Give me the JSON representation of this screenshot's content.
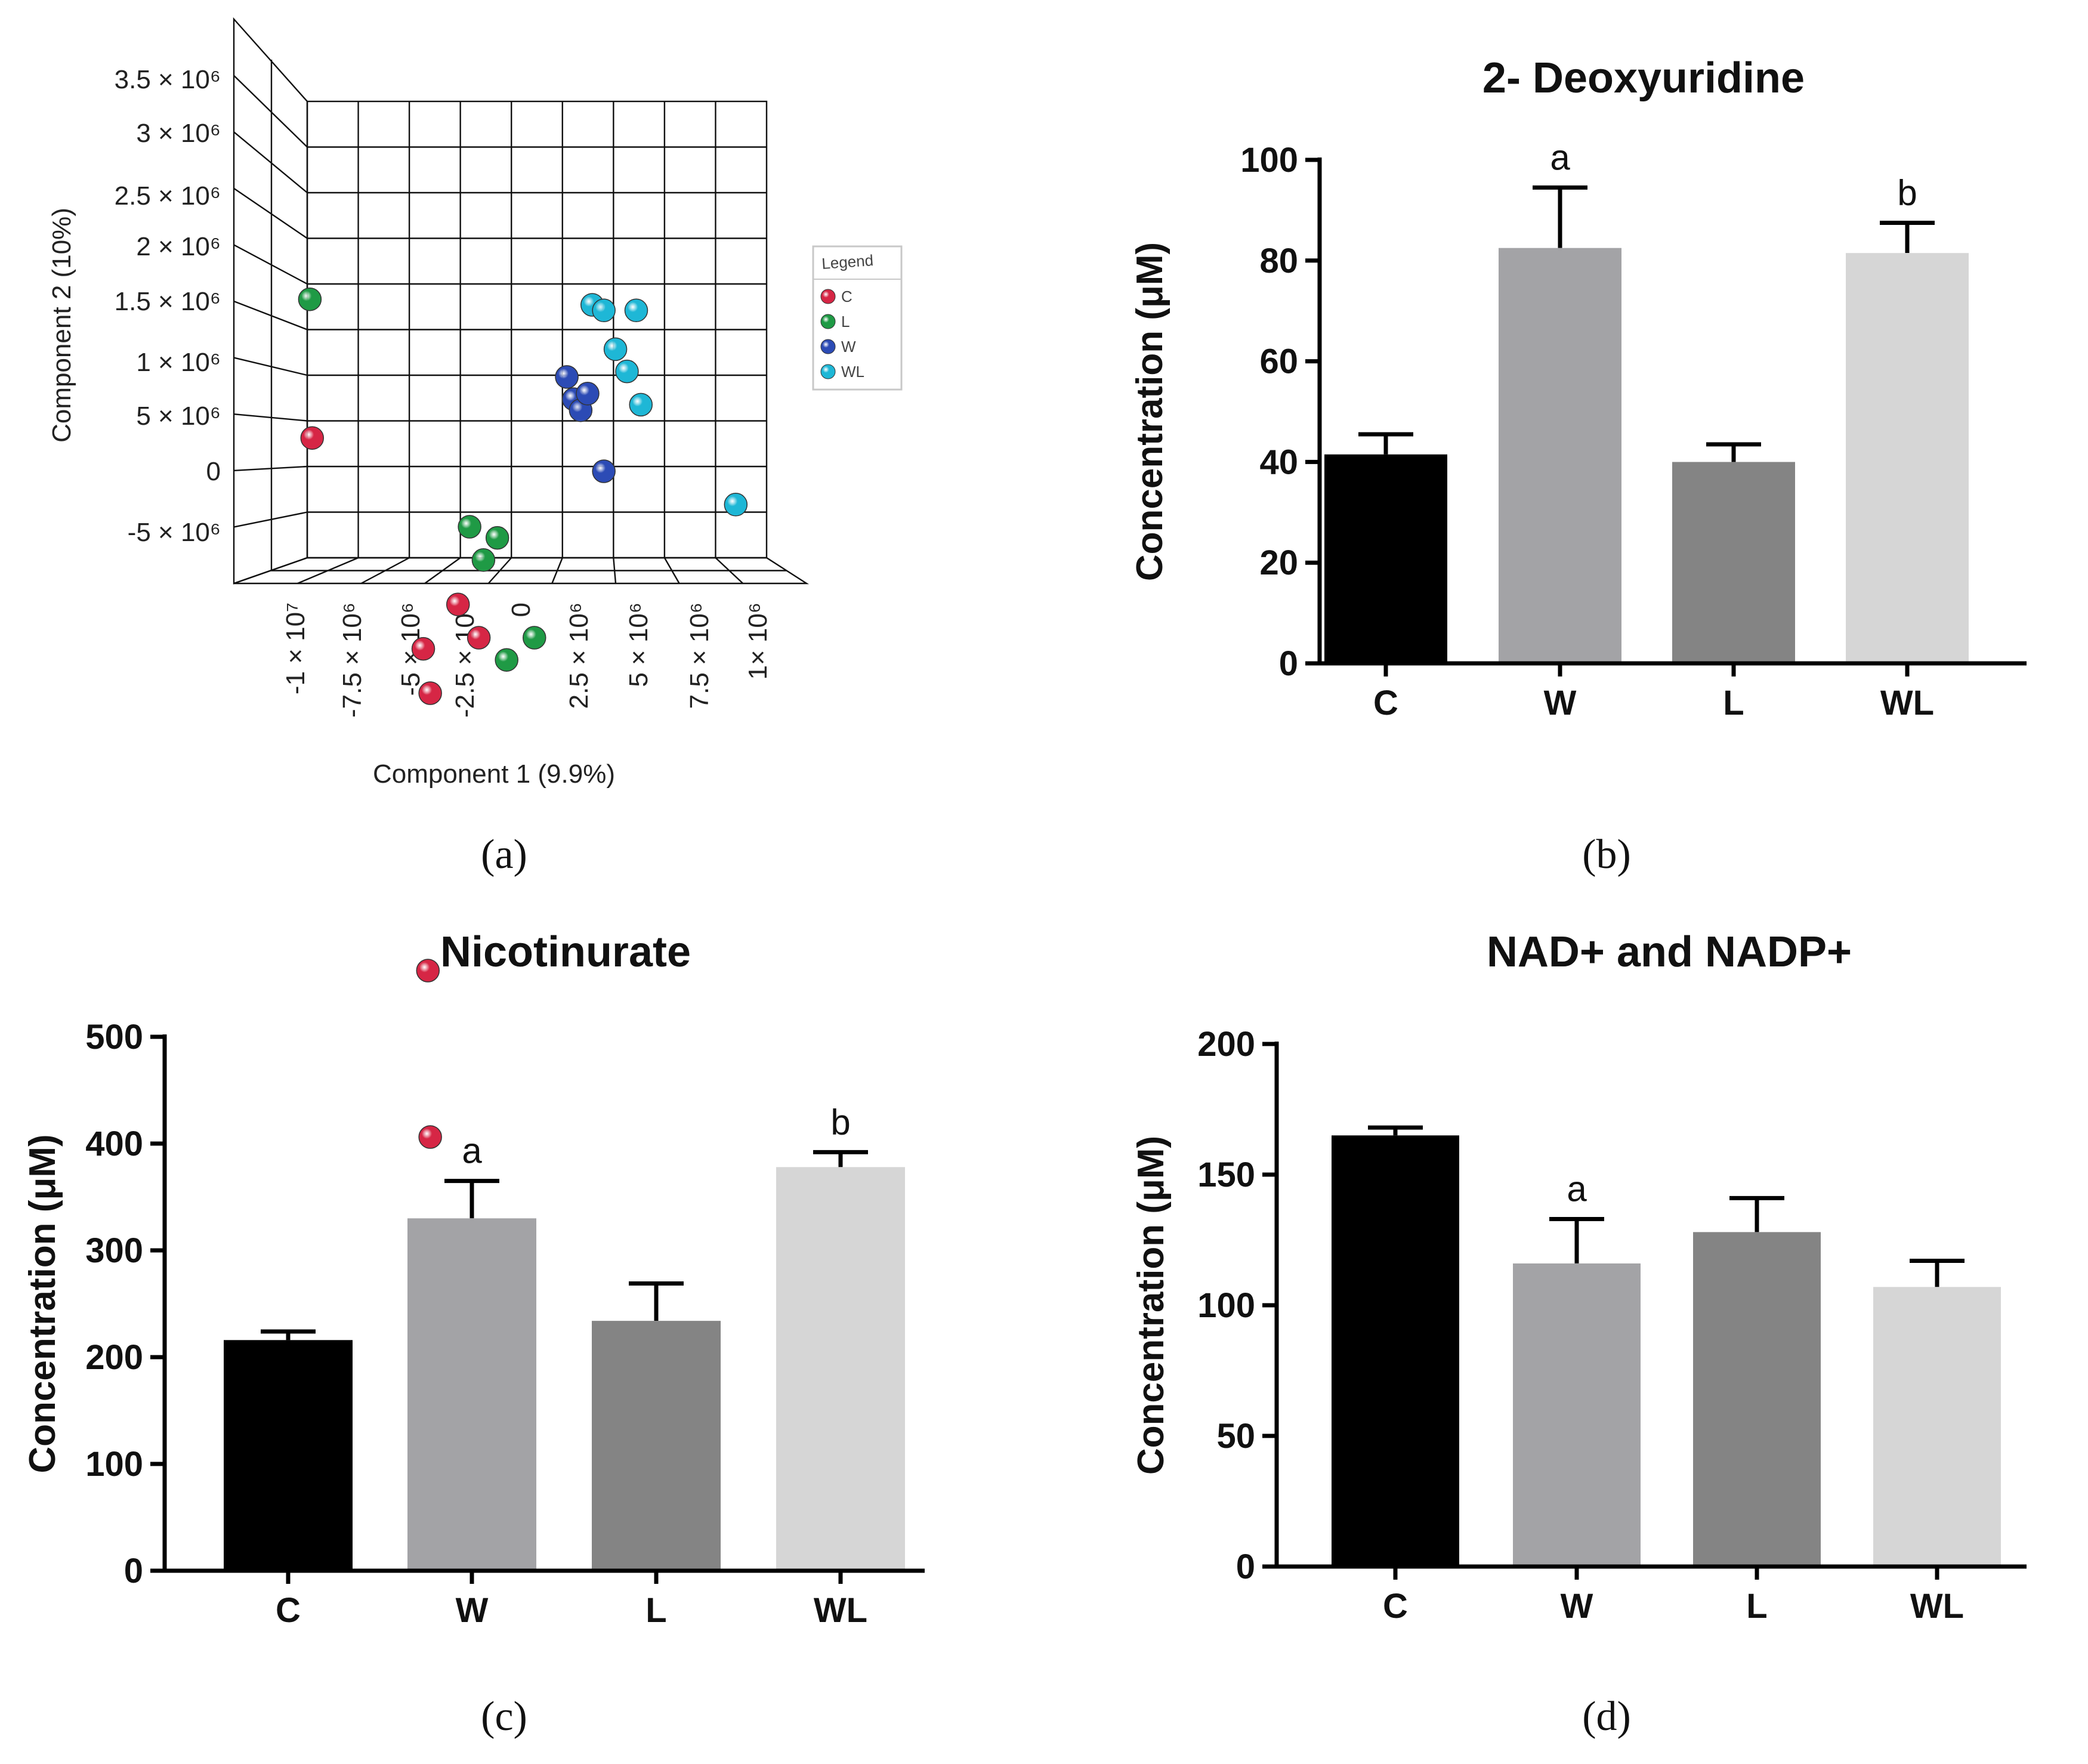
{
  "panels": {
    "a": {
      "label": "(a)",
      "chart_data": {
        "type": "scatter",
        "projection": "3d",
        "xlabel": "Component 1 (9.9%)",
        "ylabel": "Component 2 (10%)",
        "y_ticks": [
          "3.5 × 10⁶",
          "3 × 10⁶",
          "2.5 × 10⁶",
          "2 × 10⁶",
          "1.5 × 10⁶",
          "1 × 10⁶",
          "5 × 10⁶",
          "0",
          "-5 × 10⁶"
        ],
        "x_ticks": [
          "-1 × 10⁷",
          "-7.5 × 10⁶",
          "-5 × 10⁶",
          "-2.5 × 10⁶",
          "0",
          "2.5 × 10⁶",
          "5 × 10⁶",
          "7.5 × 10⁶",
          "1× 10⁶"
        ],
        "legend": {
          "title": "Legend",
          "entries": [
            {
              "name": "C",
              "color": "#d62645"
            },
            {
              "name": "L",
              "color": "#1f9a45"
            },
            {
              "name": "W",
              "color": "#2c4bb5"
            },
            {
              "name": "WL",
              "color": "#1eb7d6"
            }
          ]
        },
        "series": [
          {
            "name": "C",
            "points": [
              [
                -9400000.0,
                300000.0
              ],
              [
                -4600000.0,
                -1600000.0
              ],
              [
                -4300000.0,
                -2000000.0
              ],
              [
                -4400000.0,
                -4500000.0
              ],
              [
                -4300000.0,
                -6000000.0
              ],
              [
                -3100000.0,
                -1200000.0
              ],
              [
                -2200000.0,
                -1500000.0
              ]
            ]
          },
          {
            "name": "L",
            "points": [
              [
                -9500000.0,
                1550000.0
              ],
              [
                -2600000.0,
                -500000.0
              ],
              [
                -2000000.0,
                -800000.0
              ],
              [
                -1400000.0,
                -600000.0
              ],
              [
                -1000000.0,
                -1700000.0
              ],
              [
                200000.0,
                -1500000.0
              ]
            ]
          },
          {
            "name": "W",
            "points": [
              [
                1600000.0,
                850000.0
              ],
              [
                1900000.0,
                650000.0
              ],
              [
                2200000.0,
                550000.0
              ],
              [
                3200000.0,
                0.0
              ],
              [
                2500000.0,
                700000.0
              ]
            ]
          },
          {
            "name": "WL",
            "points": [
              [
                2700000.0,
                1500000.0
              ],
              [
                3200000.0,
                1450000.0
              ],
              [
                3700000.0,
                1100000.0
              ],
              [
                4200000.0,
                900000.0
              ],
              [
                4600000.0,
                1450000.0
              ],
              [
                4800000.0,
                600000.0
              ],
              [
                8900000.0,
                -300000.0
              ]
            ]
          }
        ]
      }
    },
    "b": {
      "label": "(b)",
      "chart_data": {
        "type": "bar",
        "title": "2- Deoxyuridine",
        "ylabel": "Concentration (μM)",
        "categories": [
          "C",
          "W",
          "L",
          "WL"
        ],
        "values": [
          41.5,
          82.5,
          40,
          81.5
        ],
        "errors": [
          4,
          12,
          3.5,
          6
        ],
        "significance": [
          "",
          "a",
          "",
          "b"
        ],
        "ylim": [
          0,
          100
        ],
        "yticks": [
          0,
          20,
          40,
          60,
          80,
          100
        ],
        "colors": [
          "#000000",
          "#a3a3a6",
          "#848484",
          "#d6d6d6"
        ]
      }
    },
    "c": {
      "label": "(c)",
      "chart_data": {
        "type": "bar",
        "title": "Nicotinurate",
        "ylabel": "Concentration (μM)",
        "categories": [
          "C",
          "W",
          "L",
          "WL"
        ],
        "values": [
          216,
          330,
          234,
          378
        ],
        "errors": [
          8,
          35,
          35,
          14
        ],
        "significance": [
          "",
          "a",
          "",
          "b"
        ],
        "ylim": [
          0,
          500
        ],
        "yticks": [
          0,
          100,
          200,
          300,
          400,
          500
        ],
        "colors": [
          "#000000",
          "#a3a3a6",
          "#848484",
          "#d6d6d6"
        ]
      }
    },
    "d": {
      "label": "(d)",
      "chart_data": {
        "type": "bar",
        "title": "NAD+ and NADP+",
        "ylabel": "Concentration (μM)",
        "categories": [
          "C",
          "W",
          "L",
          "WL"
        ],
        "values": [
          165,
          116,
          128,
          107
        ],
        "errors": [
          3,
          17,
          13,
          10
        ],
        "significance": [
          "",
          "a",
          "",
          ""
        ],
        "ylim": [
          0,
          200
        ],
        "yticks": [
          0,
          50,
          100,
          150,
          200
        ],
        "colors": [
          "#000000",
          "#a3a3a6",
          "#848484",
          "#d6d6d6"
        ]
      }
    }
  }
}
